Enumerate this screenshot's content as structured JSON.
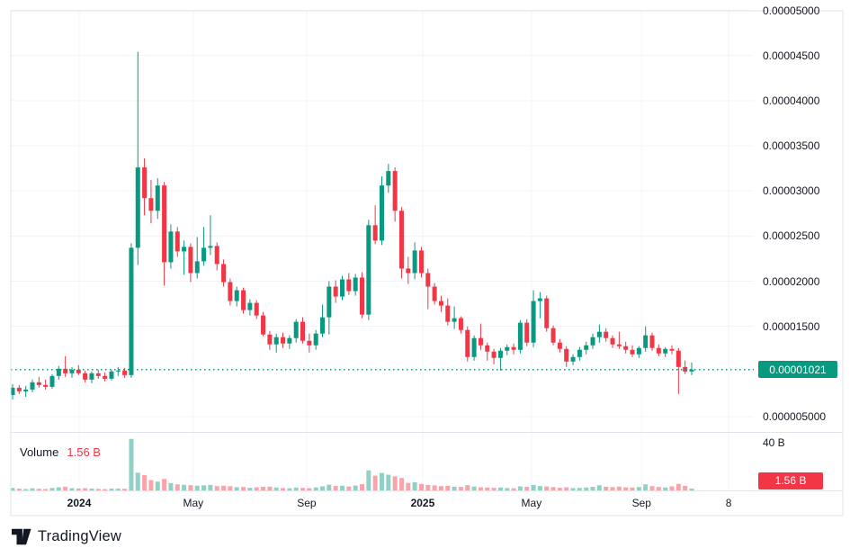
{
  "colors": {
    "background": "#ffffff",
    "up": "#089981",
    "down": "#f23645",
    "volume_up": "rgba(8,153,129,0.45)",
    "volume_down": "rgba(242,54,69,0.45)",
    "grid": "#f0f3fa",
    "border": "#e0e3eb",
    "axis_text": "#131722",
    "last_price_line": "#089981",
    "price_badge_bg": "#089981",
    "volume_badge_bg": "#f23645",
    "badge_text": "#ffffff",
    "legend_value": "#f23645",
    "logo": "#131722"
  },
  "price_axis": {
    "ticks": [
      {
        "label": "0.00005000",
        "value": 5e-05
      },
      {
        "label": "0.00004500",
        "value": 4.5e-05
      },
      {
        "label": "0.00004000",
        "value": 4e-05
      },
      {
        "label": "0.00003500",
        "value": 3.5e-05
      },
      {
        "label": "0.00003000",
        "value": 3e-05
      },
      {
        "label": "0.00002500",
        "value": 2.5e-05
      },
      {
        "label": "0.00002000",
        "value": 2e-05
      },
      {
        "label": "0.00001500",
        "value": 1.5e-05
      },
      {
        "label": "0.000005000",
        "value": 5e-06
      }
    ],
    "last_price_badge": {
      "label": "0.00001021",
      "value": 1.021e-05
    }
  },
  "time_axis": {
    "ticks": [
      {
        "label": "2024",
        "pos": 10.1,
        "bold": true
      },
      {
        "label": "May",
        "pos": 27.4,
        "bold": false
      },
      {
        "label": "Sep",
        "pos": 44.6,
        "bold": false
      },
      {
        "label": "2025",
        "pos": 62.2,
        "bold": true
      },
      {
        "label": "May",
        "pos": 78.7,
        "bold": false
      },
      {
        "label": "Sep",
        "pos": 95.4,
        "bold": false
      },
      {
        "label": "8",
        "pos": 108.6,
        "bold": false
      }
    ]
  },
  "volume_axis": {
    "tick": {
      "label": "40 B",
      "value": 40
    },
    "badge": {
      "label": "1.56 B",
      "value": 1.56
    }
  },
  "volume_legend": {
    "title": "Volume",
    "value": "1.56 B"
  },
  "logo": {
    "text": "TradingView"
  },
  "chart_data": {
    "type": "candlestick",
    "columns": [
      "open",
      "high",
      "low",
      "close",
      "volume"
    ],
    "price_multiplier": 1e-06,
    "volume_unit": "billions",
    "last_close": 1.021e-05,
    "last_volume_label": "1.56 B",
    "ylim": [
      3.4e-06,
      5.1e-05
    ],
    "volume_ylim": [
      0,
      44
    ],
    "x_tick_labels": [
      "2024",
      "May",
      "Sep",
      "2025",
      "May",
      "Sep",
      "8"
    ],
    "grid": true,
    "candles": [
      [
        7.4,
        8.6,
        6.9,
        8.2,
        2.1
      ],
      [
        8.2,
        8.5,
        7.5,
        7.8,
        1.5
      ],
      [
        7.8,
        8.4,
        7.2,
        8.0,
        1.2
      ],
      [
        8.0,
        9.1,
        7.7,
        8.8,
        1.8
      ],
      [
        8.8,
        9.4,
        8.2,
        8.5,
        1.4
      ],
      [
        8.5,
        9.1,
        8.0,
        8.3,
        1.2
      ],
      [
        8.3,
        9.7,
        8.1,
        9.5,
        2.0
      ],
      [
        9.5,
        10.6,
        9.1,
        10.3,
        2.6
      ],
      [
        10.3,
        11.7,
        9.4,
        9.8,
        3.1
      ],
      [
        9.8,
        10.5,
        9.3,
        10.2,
        1.9
      ],
      [
        10.2,
        10.7,
        9.6,
        9.8,
        1.6
      ],
      [
        9.8,
        10.1,
        8.8,
        9.1,
        1.9
      ],
      [
        9.1,
        10.0,
        8.7,
        9.8,
        1.5
      ],
      [
        9.8,
        10.2,
        9.2,
        9.5,
        1.3
      ],
      [
        9.5,
        9.9,
        8.9,
        9.2,
        1.1
      ],
      [
        9.2,
        10.2,
        9.0,
        10.0,
        1.5
      ],
      [
        10.0,
        10.5,
        9.5,
        10.1,
        1.6
      ],
      [
        10.1,
        10.4,
        9.3,
        9.6,
        1.4
      ],
      [
        9.6,
        24.2,
        9.3,
        23.7,
        43.2
      ],
      [
        23.7,
        45.4,
        21.8,
        32.6,
        14.8
      ],
      [
        32.6,
        33.6,
        27.3,
        29.2,
        12.9
      ],
      [
        29.2,
        31.2,
        26.4,
        27.8,
        8.6
      ],
      [
        27.8,
        31.4,
        26.9,
        30.6,
        7.4
      ],
      [
        30.6,
        31.0,
        19.5,
        22.1,
        9.6
      ],
      [
        22.1,
        26.3,
        21.4,
        25.5,
        6.2
      ],
      [
        25.5,
        26.0,
        22.7,
        23.3,
        5.1
      ],
      [
        23.3,
        24.5,
        20.7,
        23.8,
        4.7
      ],
      [
        23.8,
        24.2,
        19.9,
        20.9,
        4.4
      ],
      [
        20.9,
        24.9,
        20.3,
        22.2,
        4.0
      ],
      [
        22.2,
        26.0,
        21.7,
        23.7,
        4.3
      ],
      [
        23.7,
        27.3,
        22.9,
        23.9,
        4.6
      ],
      [
        23.9,
        24.3,
        21.2,
        21.9,
        3.6
      ],
      [
        21.9,
        22.4,
        19.4,
        19.9,
        3.9
      ],
      [
        19.9,
        20.3,
        17.3,
        17.8,
        3.5
      ],
      [
        17.8,
        19.4,
        17.2,
        19.0,
        2.7
      ],
      [
        19.0,
        19.3,
        16.4,
        16.8,
        2.9
      ],
      [
        16.8,
        18.0,
        16.2,
        17.6,
        2.2
      ],
      [
        17.6,
        17.9,
        15.8,
        16.2,
        2.6
      ],
      [
        16.2,
        16.6,
        13.9,
        14.1,
        3.0
      ],
      [
        14.1,
        14.5,
        12.4,
        13.0,
        3.2
      ],
      [
        13.0,
        14.2,
        12.1,
        13.8,
        2.4
      ],
      [
        13.8,
        14.3,
        12.6,
        13.1,
        2.0
      ],
      [
        13.1,
        14.0,
        12.5,
        13.7,
        1.8
      ],
      [
        13.7,
        15.8,
        13.2,
        15.5,
        2.3
      ],
      [
        15.5,
        16.0,
        13.1,
        13.4,
        2.1
      ],
      [
        13.4,
        14.2,
        12.1,
        12.9,
        1.9
      ],
      [
        12.9,
        14.6,
        12.4,
        14.2,
        2.5
      ],
      [
        14.2,
        17.4,
        13.8,
        16.0,
        3.4
      ],
      [
        16.0,
        20.0,
        14.1,
        19.4,
        4.8
      ],
      [
        19.4,
        20.1,
        17.6,
        18.3,
        3.7
      ],
      [
        18.3,
        20.6,
        17.9,
        20.2,
        3.9
      ],
      [
        20.2,
        20.9,
        18.5,
        18.9,
        3.3
      ],
      [
        18.9,
        20.8,
        18.4,
        20.4,
        4.1
      ],
      [
        20.4,
        21.0,
        15.9,
        16.3,
        5.2
      ],
      [
        16.3,
        26.8,
        15.7,
        26.2,
        16.8
      ],
      [
        26.2,
        28.4,
        24.1,
        24.5,
        12.4
      ],
      [
        24.5,
        31.6,
        24.0,
        30.6,
        14.6
      ],
      [
        30.6,
        33.0,
        29.8,
        32.2,
        13.2
      ],
      [
        32.2,
        32.6,
        26.6,
        27.8,
        11.8
      ],
      [
        27.8,
        28.2,
        20.3,
        21.4,
        10.4
      ],
      [
        21.4,
        22.7,
        19.7,
        20.9,
        6.3
      ],
      [
        20.9,
        24.3,
        20.2,
        23.4,
        6.8
      ],
      [
        23.4,
        23.8,
        20.4,
        20.9,
        5.4
      ],
      [
        20.9,
        21.4,
        16.9,
        19.4,
        4.6
      ],
      [
        19.4,
        19.8,
        17.4,
        17.8,
        4.2
      ],
      [
        17.8,
        18.4,
        16.6,
        17.3,
        3.6
      ],
      [
        17.3,
        18.1,
        15.1,
        15.5,
        3.8
      ],
      [
        15.5,
        17.2,
        14.7,
        15.9,
        3.1
      ],
      [
        15.9,
        16.1,
        14.2,
        14.6,
        2.9
      ],
      [
        14.6,
        15.0,
        11.1,
        11.6,
        4.4
      ],
      [
        11.6,
        14.0,
        11.2,
        13.7,
        3.2
      ],
      [
        13.7,
        15.3,
        12.4,
        12.9,
        2.6
      ],
      [
        12.9,
        13.2,
        11.2,
        12.2,
        2.4
      ],
      [
        12.2,
        12.5,
        10.8,
        11.5,
        2.2
      ],
      [
        11.5,
        12.6,
        10.1,
        12.3,
        2.5
      ],
      [
        12.3,
        13.0,
        11.8,
        12.7,
        2.0
      ],
      [
        12.7,
        13.1,
        11.9,
        12.4,
        1.8
      ],
      [
        12.4,
        15.7,
        12.0,
        15.4,
        3.4
      ],
      [
        15.4,
        15.8,
        12.8,
        13.2,
        3.0
      ],
      [
        13.2,
        19.0,
        12.7,
        17.8,
        4.6
      ],
      [
        17.8,
        18.8,
        15.9,
        18.1,
        3.7
      ],
      [
        18.1,
        18.4,
        14.4,
        14.8,
        3.3
      ],
      [
        14.8,
        15.1,
        12.9,
        13.2,
        2.8
      ],
      [
        13.2,
        13.6,
        12.1,
        12.5,
        2.2
      ],
      [
        12.5,
        12.8,
        10.5,
        11.1,
        2.6
      ],
      [
        11.1,
        11.9,
        10.7,
        11.6,
        1.9
      ],
      [
        11.6,
        12.7,
        11.2,
        12.4,
        2.1
      ],
      [
        12.4,
        13.3,
        11.9,
        12.9,
        2.4
      ],
      [
        12.9,
        14.2,
        12.5,
        13.8,
        3.0
      ],
      [
        13.8,
        15.2,
        13.2,
        14.4,
        4.3
      ],
      [
        14.4,
        14.8,
        13.3,
        13.7,
        3.1
      ],
      [
        13.7,
        14.0,
        12.6,
        13.0,
        2.8
      ],
      [
        13.0,
        14.4,
        12.5,
        12.8,
        3.2
      ],
      [
        12.8,
        13.3,
        12.0,
        12.4,
        2.6
      ],
      [
        12.4,
        12.9,
        11.6,
        11.9,
        2.4
      ],
      [
        11.9,
        12.8,
        11.5,
        12.6,
        2.8
      ],
      [
        12.6,
        15.0,
        12.2,
        14.0,
        5.1
      ],
      [
        14.0,
        14.3,
        12.3,
        12.6,
        3.6
      ],
      [
        12.6,
        13.0,
        11.7,
        12.0,
        2.9
      ],
      [
        12.0,
        12.7,
        11.6,
        12.5,
        2.5
      ],
      [
        12.5,
        12.9,
        11.9,
        12.3,
        3.4
      ],
      [
        12.3,
        12.6,
        7.5,
        10.5,
        5.5
      ],
      [
        10.5,
        11.2,
        9.7,
        10.0,
        3.8
      ],
      [
        10.0,
        11.0,
        9.6,
        10.21,
        1.56
      ]
    ]
  }
}
